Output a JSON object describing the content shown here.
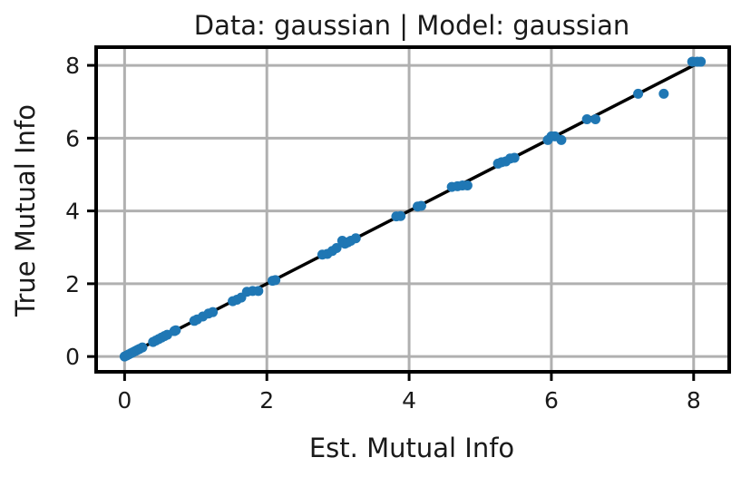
{
  "chart_data": {
    "type": "scatter",
    "title": "Data: gaussian | Model: gaussian",
    "xlabel": "Est. Mutual Info",
    "ylabel": "True Mutual Info",
    "xlim": [
      -0.4,
      8.5
    ],
    "ylim": [
      -0.42,
      8.5
    ],
    "xticks": [
      0,
      2,
      4,
      6,
      8
    ],
    "yticks": [
      0,
      2,
      4,
      6,
      8
    ],
    "grid": true,
    "colors": {
      "points": "#1f77b4",
      "reference_line": "#000000",
      "grid": "#b0b0b0",
      "frame": "#000000"
    },
    "reference_line": {
      "x": [
        0,
        8.1
      ],
      "y": [
        0,
        8.1
      ]
    },
    "series": [
      {
        "x": [
          0.0,
          0.03,
          0.06,
          0.09,
          0.12,
          0.15,
          0.18,
          0.21,
          0.25,
          0.4,
          0.44,
          0.48,
          0.52,
          0.56,
          0.6,
          0.7,
          0.72,
          0.98,
          1.02,
          1.1,
          1.18,
          1.24,
          1.52,
          1.58,
          1.64,
          1.72,
          1.8,
          1.88,
          2.08,
          2.12,
          2.78,
          2.85,
          2.92,
          2.98,
          3.06,
          3.1,
          3.14,
          3.18,
          3.25,
          3.82,
          3.88,
          4.12,
          4.17,
          4.6,
          4.68,
          4.75,
          4.82,
          5.25,
          5.3,
          5.36,
          5.42,
          5.48,
          5.95,
          6.0,
          6.05,
          6.14,
          6.5,
          6.62,
          7.22,
          7.58,
          7.98,
          8.05,
          8.1
        ],
        "y": [
          0.0,
          0.03,
          0.06,
          0.09,
          0.12,
          0.15,
          0.18,
          0.21,
          0.25,
          0.4,
          0.44,
          0.48,
          0.52,
          0.56,
          0.6,
          0.7,
          0.72,
          0.98,
          1.02,
          1.1,
          1.18,
          1.22,
          1.52,
          1.56,
          1.62,
          1.78,
          1.8,
          1.8,
          2.08,
          2.1,
          2.8,
          2.82,
          2.9,
          2.98,
          3.18,
          3.1,
          3.14,
          3.18,
          3.25,
          3.85,
          3.86,
          4.12,
          4.14,
          4.66,
          4.68,
          4.7,
          4.7,
          5.3,
          5.34,
          5.36,
          5.44,
          5.46,
          5.95,
          6.05,
          6.05,
          5.95,
          6.52,
          6.52,
          7.22,
          7.22,
          8.1,
          8.1,
          8.1
        ]
      }
    ]
  }
}
